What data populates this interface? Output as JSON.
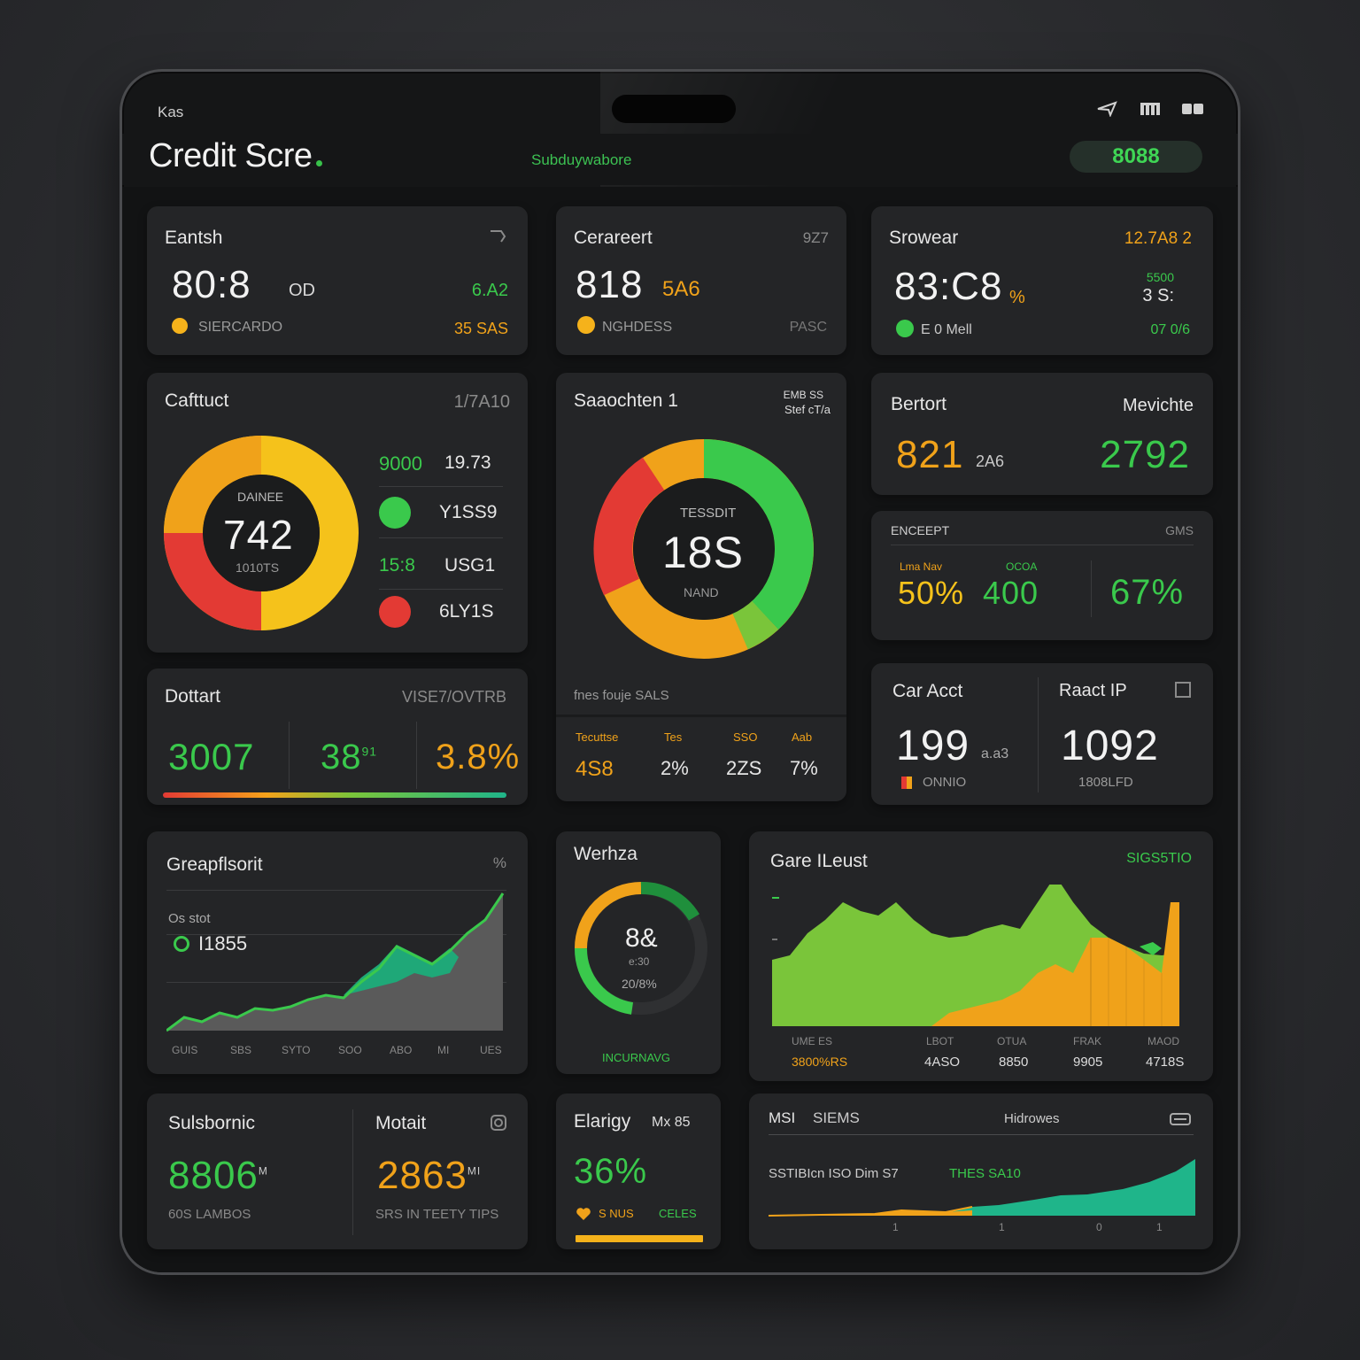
{
  "status": {
    "left": "Kas"
  },
  "header": {
    "title": "Credit Scre",
    "subtitle": "Subduywabore",
    "pill": "8088"
  },
  "colors": {
    "green": "#3ac94c",
    "orange": "#f0a21a",
    "yellow": "#f5c21b",
    "red": "#e33a34",
    "teal": "#1fb58a"
  },
  "card1": {
    "title": "Eantsh",
    "value": "80:8",
    "unit": "OD",
    "right_top": "6.A2",
    "legend": "SIERCARDO",
    "right_bottom": "35 SAS"
  },
  "card2": {
    "title": "Cerareert",
    "meta": "9Z7",
    "value": "818",
    "suffix": "5A6",
    "legend": "NGHDESS",
    "right_bottom": "PASC"
  },
  "card3": {
    "title": "Srowear",
    "meta": "12.7A8 2",
    "value": "83:C8",
    "suffix": "%",
    "side_top": "5500",
    "side_mid": "3 S:",
    "legend": "E 0 Mell",
    "right_bottom": "07 0/6"
  },
  "card4": {
    "title": "Cafttuct",
    "meta": "1/7A10",
    "donut_top": "DAINEE",
    "donut_value": "742",
    "donut_bottom": "1010TS",
    "rows": [
      {
        "left": "9000",
        "right": "19.73"
      },
      {
        "left": "",
        "right": "Y1SS9"
      },
      {
        "left": "15:8",
        "right": "USG1"
      },
      {
        "left": "",
        "right": "6LY1S"
      }
    ]
  },
  "card5": {
    "title": "Saaochten 1",
    "meta_top": "EMB SS",
    "meta_bottom": "Stef cT/a",
    "donut_top": "TESSDIT",
    "donut_value": "18S",
    "donut_bottom": "NAND",
    "caption": "fnes fouje SALS",
    "stats": [
      {
        "label": "Tecuttse",
        "value": "4S8"
      },
      {
        "label": "Tes",
        "value": "2%"
      },
      {
        "label": "SSO",
        "value": "2ZS"
      },
      {
        "label": "Aab",
        "value": "7%"
      }
    ]
  },
  "card6": {
    "title": "Bertort",
    "right_title": "Mevichte",
    "value": "821",
    "suffix": "2A6",
    "right_value": "2792"
  },
  "card7": {
    "title": "ENCEEPT",
    "meta": "GMS",
    "labels": [
      "Lma Nav",
      "OCOA"
    ],
    "v1": "50%",
    "v2": "400",
    "v3": "67%"
  },
  "card8": {
    "title": "Dottart",
    "meta": "VISE7/OVTRB",
    "v1": "3007",
    "v2": "38",
    "v2sup": "91",
    "v3": "3.8%"
  },
  "card9": {
    "title": "Car Acct",
    "right_title": "Raact IP",
    "value": "199",
    "suffix": "a.a3",
    "caption": "ONNIO",
    "right_value": "1092",
    "right_caption": "1808LFD"
  },
  "card10": {
    "title": "Greapflsorit",
    "meta": "%",
    "label_top": "Os stot",
    "label_value": "I1855",
    "xticks": [
      "GUIS",
      "SBS",
      "SYTO",
      "SOO",
      "ABO",
      "MI",
      "UES"
    ]
  },
  "card11": {
    "title": "Werhza",
    "center": "8&",
    "center_sub": "e:30",
    "center_bottom": "20/8%",
    "caption": "INCURNAVG"
  },
  "card12": {
    "title": "Gare ILeust",
    "meta": "SIGS5TIO",
    "xlabels": [
      "UME  ES",
      "LBOT",
      "OTUA",
      "FRAK",
      "MAOD"
    ],
    "xvalues": [
      "3800%RS",
      "4ASO",
      "8850",
      "9905",
      "4718S"
    ]
  },
  "card13": {
    "title": "Sulsbornic",
    "right_title": "Motait",
    "v1": "8806",
    "v1sup": "M",
    "v2": "2863",
    "v2sup": "MI",
    "cap1": "60S LAMBOS",
    "cap2": "SRS IN TEETY  TIPS"
  },
  "card14": {
    "title": "Elarigy",
    "meta": "Mx 85",
    "value": "36%",
    "caption_left": "S NUS",
    "caption_right": "CELES"
  },
  "card15": {
    "title": "MSI",
    "meta": "SIEMS",
    "right_title": "Hidrowes",
    "label1": "SSTIBIcn ISO Dim  S7",
    "label2": "THES SA10",
    "ticks": [
      "1",
      "1",
      "0",
      "1"
    ]
  }
}
